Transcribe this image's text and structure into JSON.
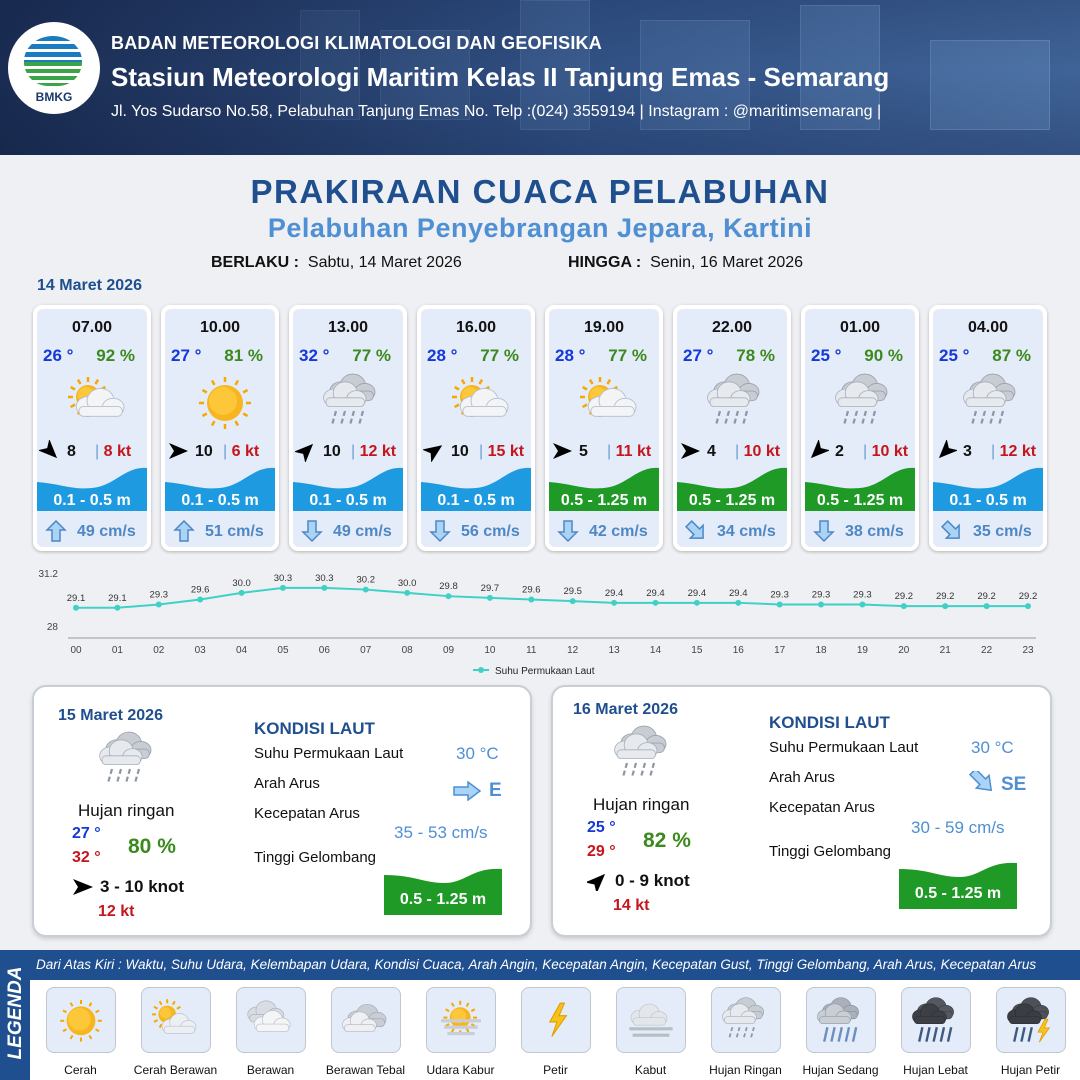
{
  "header": {
    "logo_text": "BMKG",
    "agency": "BADAN METEOROLOGI KLIMATOLOGI DAN GEOFISIKA",
    "station": "Stasiun Meteorologi Maritim Kelas II Tanjung Emas - Semarang",
    "address": "Jl. Yos Sudarso No.58, Pelabuhan Tanjung Emas No. Telp :(024) 3559194 | Instagram : @maritimsemarang |"
  },
  "title": "PRAKIRAAN CUACA PELABUHAN",
  "subtitle": "Pelabuhan Penyebrangan Jepara, Kartini",
  "validity": {
    "from_label": "BERLAKU :",
    "from_value": "Sabtu, 14 Maret 2026",
    "to_label": "HINGGA :",
    "to_value": "Senin, 16 Maret 2026"
  },
  "day1_date": "14 Maret 2026",
  "hourly": [
    {
      "time": "07.00",
      "temp": "26 °",
      "hum": "92 %",
      "icon": "partly-cloudy-icon",
      "wind_dir_deg": 135,
      "wind": "8",
      "gust": "8 kt",
      "wave": "0.1 - 0.5 m",
      "wave_color": "#1e9be0",
      "cur_dir_icon": "arrow-up-icon",
      "cur_deg": 0,
      "current": "49 cm/s"
    },
    {
      "time": "10.00",
      "temp": "27 °",
      "hum": "81 %",
      "icon": "sunny-icon",
      "wind_dir_deg": 90,
      "wind": "10",
      "gust": "6 kt",
      "wave": "0.1 - 0.5 m",
      "wave_color": "#1e9be0",
      "cur_dir_icon": "arrow-up-icon",
      "cur_deg": 0,
      "current": "51 cm/s"
    },
    {
      "time": "13.00",
      "temp": "32 °",
      "hum": "77 %",
      "icon": "light-rain-icon",
      "wind_dir_deg": 45,
      "wind": "10",
      "gust": "12 kt",
      "wave": "0.1 - 0.5 m",
      "wave_color": "#1e9be0",
      "cur_dir_icon": "arrow-down-icon",
      "cur_deg": 180,
      "current": "49 cm/s"
    },
    {
      "time": "16.00",
      "temp": "28 °",
      "hum": "77 %",
      "icon": "partly-cloudy-icon",
      "wind_dir_deg": 55,
      "wind": "10",
      "gust": "15 kt",
      "wave": "0.1 - 0.5 m",
      "wave_color": "#1e9be0",
      "cur_dir_icon": "arrow-down-icon",
      "cur_deg": 180,
      "current": "56 cm/s"
    },
    {
      "time": "19.00",
      "temp": "28 °",
      "hum": "77 %",
      "icon": "partly-cloudy-icon",
      "wind_dir_deg": 90,
      "wind": "5",
      "gust": "11 kt",
      "wave": "0.5 - 1.25 m",
      "wave_color": "#1f9a26",
      "cur_dir_icon": "arrow-down-icon",
      "cur_deg": 180,
      "current": "42 cm/s"
    },
    {
      "time": "22.00",
      "temp": "27 °",
      "hum": "78 %",
      "icon": "light-rain-icon",
      "wind_dir_deg": 90,
      "wind": "4",
      "gust": "10 kt",
      "wave": "0.5 - 1.25 m",
      "wave_color": "#1f9a26",
      "cur_dir_icon": "arrow-down-right-icon",
      "cur_deg": 135,
      "current": "34 cm/s"
    },
    {
      "time": "01.00",
      "temp": "25 °",
      "hum": "90 %",
      "icon": "light-rain-icon",
      "wind_dir_deg": 225,
      "wind": "2",
      "gust": "10 kt",
      "wave": "0.5 - 1.25 m",
      "wave_color": "#1f9a26",
      "cur_dir_icon": "arrow-down-icon",
      "cur_deg": 180,
      "current": "38 cm/s"
    },
    {
      "time": "04.00",
      "temp": "25 °",
      "hum": "87 %",
      "icon": "light-rain-icon",
      "wind_dir_deg": 225,
      "wind": "3",
      "gust": "12 kt",
      "wave": "0.1 - 0.5 m",
      "wave_color": "#1e9be0",
      "cur_dir_icon": "arrow-down-right-icon",
      "cur_deg": 135,
      "current": "35 cm/s"
    }
  ],
  "chart_data": {
    "type": "line",
    "x": [
      "00",
      "01",
      "02",
      "03",
      "04",
      "05",
      "06",
      "07",
      "08",
      "09",
      "10",
      "11",
      "12",
      "13",
      "14",
      "15",
      "16",
      "17",
      "18",
      "19",
      "20",
      "21",
      "22",
      "23"
    ],
    "series": [
      {
        "name": "Suhu Permukaan Laut",
        "values": [
          29.1,
          29.1,
          29.3,
          29.6,
          30.0,
          30.3,
          30.3,
          30.2,
          30.0,
          29.8,
          29.7,
          29.6,
          29.5,
          29.4,
          29.4,
          29.4,
          29.4,
          29.3,
          29.3,
          29.3,
          29.2,
          29.2,
          29.2,
          29.2
        ]
      }
    ],
    "ylim": [
      28,
      31.2
    ],
    "yticks": [
      "31.2",
      "28"
    ],
    "line_color": "#3fd1c6",
    "legend_position": "bottom-center",
    "grid": false
  },
  "days": [
    {
      "date": "15 Maret 2026",
      "condition": "Hujan ringan",
      "tmin": "27 °",
      "tmax": "32 °",
      "hum": "80 %",
      "wind_dir_deg": 90,
      "wind": "3  - 10 knot",
      "gust": "12 kt",
      "kondisi_title": "KONDISI LAUT",
      "sst_label": "Suhu Permukaan Laut",
      "sst": "30 °C",
      "cur_dir_label": "Arah Arus",
      "cur_dir": "E",
      "cur_dir_deg": 90,
      "cur_spd_label": "Kecepatan Arus",
      "cur_spd": "35 - 53 cm/s",
      "wave_label": "Tinggi Gelombang",
      "wave": "0.5 - 1.25 m"
    },
    {
      "date": "16 Maret 2026",
      "condition": "Hujan ringan",
      "tmin": "25 °",
      "tmax": "29 °",
      "hum": "82 %",
      "wind_dir_deg": 45,
      "wind": "0  - 9 knot",
      "gust": "14 kt",
      "kondisi_title": "KONDISI LAUT",
      "sst_label": "Suhu Permukaan Laut",
      "sst": "30 °C",
      "cur_dir_label": "Arah Arus",
      "cur_dir": "SE",
      "cur_dir_deg": 135,
      "cur_spd_label": "Kecepatan Arus",
      "cur_spd": "30 - 59 cm/s",
      "wave_label": "Tinggi Gelombang",
      "wave": "0.5 - 1.25 m"
    }
  ],
  "legend": {
    "side_label": "LEGENDA",
    "description": "Dari Atas Kiri : Waktu, Suhu Udara, Kelembapan Udara, Kondisi Cuaca, Arah Angin, Kecepatan Angin, Kecepatan Gust, Tinggi Gelombang, Arah Arus, Kecepatan Arus",
    "items": [
      {
        "label": "Cerah",
        "icon": "sunny-icon"
      },
      {
        "label": "Cerah Berawan",
        "icon": "partly-sunny-icon"
      },
      {
        "label": "Berawan",
        "icon": "cloudy-icon"
      },
      {
        "label": "Berawan Tebal",
        "icon": "overcast-icon"
      },
      {
        "label": "Udara Kabur",
        "icon": "haze-icon"
      },
      {
        "label": "Petir",
        "icon": "lightning-icon"
      },
      {
        "label": "Kabut",
        "icon": "fog-icon"
      },
      {
        "label": "Hujan Ringan",
        "icon": "light-rain-icon"
      },
      {
        "label": "Hujan Sedang",
        "icon": "moderate-rain-icon"
      },
      {
        "label": "Hujan Lebat",
        "icon": "heavy-rain-icon"
      },
      {
        "label": "Hujan Petir",
        "icon": "thunderstorm-icon"
      }
    ]
  }
}
